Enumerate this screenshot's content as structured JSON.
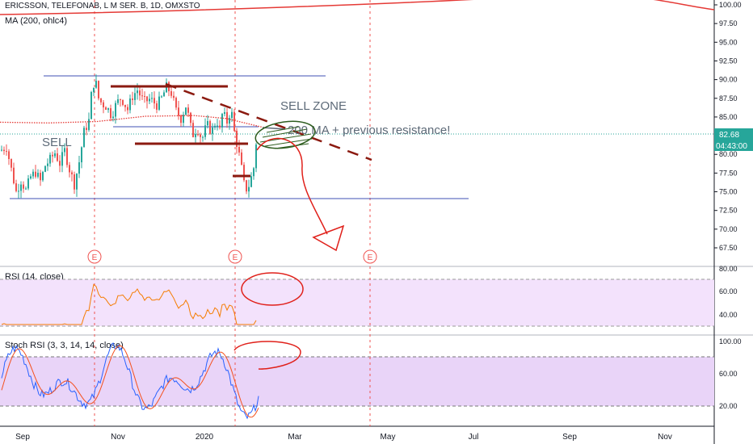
{
  "legend": {
    "symbol": "ERICSSON, TELEFONAB, L M SER. B, 1D, OMXSTO",
    "ma": "MA (200, ohlc4)",
    "rsi": "RSI (14, close)",
    "stoch": "Stoch RSI (3, 3, 14, 14, close)"
  },
  "colors": {
    "up": "#26a69a",
    "down": "#ef5350",
    "ma": "#e53935",
    "hline": "#3f51b5",
    "resistance": "#8b1a10",
    "annotation": "#e0201a",
    "ellipse": "#2e5d1f",
    "rsi_line": "#f57c00",
    "stoch_k": "#2962ff",
    "stoch_d": "#f4511e",
    "rsi_band": "#f3e2fc",
    "stoch_band": "#e9d4f8",
    "last_price": "#26a69a"
  },
  "price_axis": {
    "ticks": [
      "100.00",
      "97.50",
      "95.00",
      "92.50",
      "90.00",
      "87.50",
      "85.00",
      "82.50",
      "80.00",
      "77.50",
      "75.00",
      "72.50",
      "70.00",
      "67.50"
    ]
  },
  "last_price": {
    "value": "82.68",
    "countdown": "04:43:00"
  },
  "rsi_axis": {
    "ticks": [
      "80.00",
      "60.00",
      "40.00"
    ]
  },
  "stoch_axis": {
    "ticks": [
      "100.00",
      "60.00",
      "20.00"
    ]
  },
  "time_axis": {
    "labels": [
      "Sep",
      "Nov",
      "2020",
      "Mar",
      "May",
      "Jul",
      "Sep",
      "Nov"
    ]
  },
  "earnings_marker": "E",
  "annotations": {
    "sell": "SELL",
    "sell_zone": "SELL ZONE",
    "ma_note": "200 MA + previous resistance!"
  },
  "chart_data": {
    "type": "candlestick",
    "ylim": [
      66,
      101
    ],
    "price_series_approx": [
      {
        "month": "Sep 2019",
        "close": 76.5
      },
      {
        "month": "Oct 2019",
        "close": 89.0
      },
      {
        "month": "Nov 2019",
        "close": 87.0
      },
      {
        "month": "Dec 2019",
        "close": 86.5
      },
      {
        "month": "Jan 2020",
        "close": 82.5
      },
      {
        "month": "Feb 2020",
        "close": 82.68
      }
    ],
    "ma200_approx": [
      {
        "month": "Sep 2019",
        "value": 84.2
      },
      {
        "month": "Nov 2019",
        "value": 84.2
      },
      {
        "month": "Jan 2020",
        "value": 85.0
      },
      {
        "month": "Feb 2020",
        "value": 83.2
      }
    ],
    "horizontal_levels": [
      90.5,
      74.0,
      83.7
    ],
    "resistance_levels": [
      89.3,
      81.4
    ],
    "rsi_range": [
      20,
      100
    ],
    "stoch_range": [
      0,
      110
    ]
  }
}
